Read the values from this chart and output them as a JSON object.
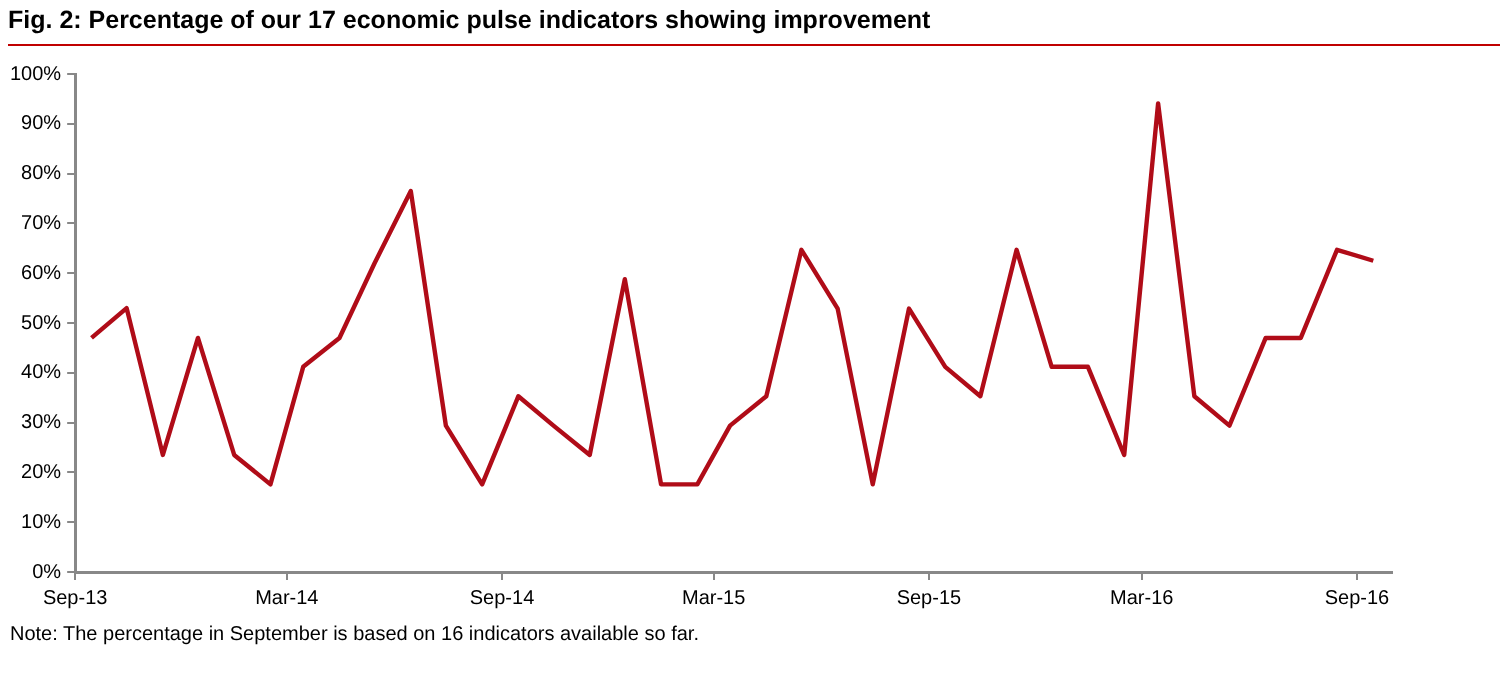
{
  "chart_data": {
    "type": "line",
    "title": "Fig. 2: Percentage of our 17 economic pulse indicators showing improvement",
    "x": [
      "2013-09-15",
      "2013-10-15",
      "2013-11-15",
      "2013-12-15",
      "2014-01-15",
      "2014-02-15",
      "2014-03-15",
      "2014-04-15",
      "2014-05-15",
      "2014-06-15",
      "2014-07-15",
      "2014-08-15",
      "2014-09-15",
      "2014-10-15",
      "2014-11-15",
      "2014-12-15",
      "2015-01-15",
      "2015-02-15",
      "2015-03-15",
      "2015-04-15",
      "2015-05-15",
      "2015-06-15",
      "2015-07-15",
      "2015-08-15",
      "2015-09-15",
      "2015-10-15",
      "2015-11-15",
      "2015-12-15",
      "2016-01-15",
      "2016-02-15",
      "2016-03-15",
      "2016-04-15",
      "2016-05-15",
      "2016-06-15",
      "2016-07-15",
      "2016-08-15",
      "2016-09-15"
    ],
    "series": [
      {
        "color": "#b00c18",
        "values": [
          47,
          53,
          23.5,
          47,
          23.5,
          17.6,
          41.2,
          47,
          62,
          76.5,
          29.4,
          17.6,
          35.3,
          29.4,
          23.5,
          58.8,
          17.6,
          17.6,
          29.4,
          35.3,
          64.7,
          52.9,
          17.6,
          52.9,
          41.2,
          35.3,
          64.7,
          41.2,
          41.2,
          23.5,
          94.1,
          35.3,
          29.4,
          47,
          47,
          64.7,
          62.5
        ]
      }
    ],
    "xlim": [
      "2013-09-01",
      "2016-10-01"
    ],
    "xticks": [
      {
        "value": "2013-09-01",
        "label": "Sep-13"
      },
      {
        "value": "2014-03-01",
        "label": "Mar-14"
      },
      {
        "value": "2014-09-01",
        "label": "Sep-14"
      },
      {
        "value": "2015-03-01",
        "label": "Mar-15"
      },
      {
        "value": "2015-09-01",
        "label": "Sep-15"
      },
      {
        "value": "2016-03-01",
        "label": "Mar-16"
      },
      {
        "value": "2016-09-01",
        "label": "Sep-16"
      }
    ],
    "ylim": [
      0,
      100
    ],
    "yticks": [
      {
        "value": 0,
        "label": "0%"
      },
      {
        "value": 10,
        "label": "10%"
      },
      {
        "value": 20,
        "label": "20%"
      },
      {
        "value": 30,
        "label": "30%"
      },
      {
        "value": 40,
        "label": "40%"
      },
      {
        "value": 50,
        "label": "50%"
      },
      {
        "value": 60,
        "label": "60%"
      },
      {
        "value": 70,
        "label": "70%"
      },
      {
        "value": 80,
        "label": "80%"
      },
      {
        "value": 90,
        "label": "90%"
      },
      {
        "value": 100,
        "label": "100%"
      }
    ],
    "grid": false,
    "legend": false,
    "marker": "none",
    "line_style": "solid",
    "annotations": [
      "Note: The percentage in September is based on 16 indicators available so far."
    ]
  }
}
